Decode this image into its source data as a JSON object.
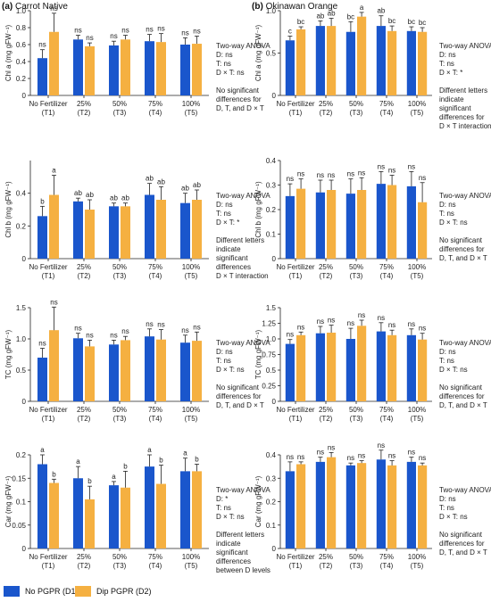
{
  "panels": [
    {
      "letter": "(a)",
      "name": "Carrot Native"
    },
    {
      "letter": "(b)",
      "name": "Okinawan Orange"
    }
  ],
  "legend": {
    "d1": {
      "label": "No PGPR (D1)",
      "color": "#1a56cc"
    },
    "d2": {
      "label": "Dip PGPR (D2)",
      "color": "#f5b041"
    }
  },
  "chart_data": [
    {
      "id": "a1",
      "panel": "(a) Carrot Native",
      "type": "bar",
      "ylabel": "Chl a (mg gFW⁻¹)",
      "ylim": [
        0,
        1.0
      ],
      "yticks": [
        0,
        0.2,
        0.4,
        0.6,
        0.8,
        1.0
      ],
      "categories": [
        "No Fertilizer (T1)",
        "25% (T2)",
        "50% (T3)",
        "75% (T4)",
        "100% (T5)"
      ],
      "cat_main": [
        "No Fertilizer",
        "25%",
        "50%",
        "75%",
        "100%"
      ],
      "cat_sub": [
        "(T1)",
        "(T2)",
        "(T3)",
        "(T4)",
        "(T5)"
      ],
      "series": [
        {
          "name": "No PGPR (D1)",
          "values": [
            0.44,
            0.66,
            0.59,
            0.64,
            0.6
          ],
          "errors": [
            0.1,
            0.05,
            0.05,
            0.08,
            0.08
          ],
          "labels": [
            "ns",
            "ns",
            "ns",
            "ns",
            "ns"
          ]
        },
        {
          "name": "Dip PGPR (D2)",
          "values": [
            0.75,
            0.58,
            0.66,
            0.63,
            0.61
          ],
          "errors": [
            0.22,
            0.04,
            0.05,
            0.1,
            0.09
          ],
          "labels": [
            "ns",
            "ns",
            "ns",
            "ns",
            "ns"
          ]
        }
      ],
      "annotation": [
        "Two-way ANOVA",
        "D: ns",
        "T: ns",
        "D × T: ns",
        "",
        "No significant",
        "differences for",
        "D, T, and D × T"
      ]
    },
    {
      "id": "a2",
      "panel": "(a) Carrot Native",
      "type": "bar",
      "ylabel": "Chl b (mg gFW⁻¹)",
      "ylim": [
        0,
        0.6
      ],
      "yticks": [
        0,
        0.2,
        0.4
      ],
      "categories": [
        "No Fertilizer (T1)",
        "25% (T2)",
        "50% (T3)",
        "75% (T4)",
        "100% (T5)"
      ],
      "cat_main": [
        "No Fertilizer",
        "25%",
        "50%",
        "75%",
        "100%"
      ],
      "cat_sub": [
        "(T1)",
        "(T2)",
        "(T3)",
        "(T4)",
        "(T5)"
      ],
      "series": [
        {
          "name": "No PGPR (D1)",
          "values": [
            0.26,
            0.35,
            0.32,
            0.39,
            0.34
          ],
          "errors": [
            0.06,
            0.02,
            0.02,
            0.07,
            0.06
          ],
          "labels": [
            "b",
            "ab",
            "ab",
            "ab",
            "ab"
          ]
        },
        {
          "name": "Dip PGPR (D2)",
          "values": [
            0.39,
            0.3,
            0.32,
            0.36,
            0.36
          ],
          "errors": [
            0.12,
            0.06,
            0.02,
            0.08,
            0.06
          ],
          "labels": [
            "a",
            "ab",
            "ab",
            "ab",
            "ab"
          ]
        }
      ],
      "annotation": [
        "Two-way ANOVA",
        "D: ns",
        "T: ns",
        "D × T: *",
        "",
        "Different letters",
        "indicate",
        "significant",
        "differences",
        "D × T interaction"
      ]
    },
    {
      "id": "a3",
      "panel": "(a) Carrot Native",
      "type": "bar",
      "ylabel": "TC (mg gFW⁻¹)",
      "ylim": [
        0,
        1.5
      ],
      "yticks": [
        0,
        0.5,
        1.0,
        1.5
      ],
      "categories": [
        "No Fertilizer (T1)",
        "25% (T2)",
        "50% (T3)",
        "75% (T4)",
        "100% (T5)"
      ],
      "cat_main": [
        "No Fertilizer",
        "25%",
        "50%",
        "75%",
        "100%"
      ],
      "cat_sub": [
        "(T1)",
        "(T2)",
        "(T3)",
        "(T4)",
        "(T5)"
      ],
      "series": [
        {
          "name": "No PGPR (D1)",
          "values": [
            0.7,
            1.01,
            0.91,
            1.04,
            0.94
          ],
          "errors": [
            0.15,
            0.08,
            0.07,
            0.12,
            0.12
          ],
          "labels": [
            "ns",
            "ns",
            "ns",
            "ns",
            "ns"
          ]
        },
        {
          "name": "Dip PGPR (D2)",
          "values": [
            1.14,
            0.88,
            0.98,
            0.99,
            0.97
          ],
          "errors": [
            0.37,
            0.1,
            0.06,
            0.16,
            0.14
          ],
          "labels": [
            "ns",
            "ns",
            "ns",
            "ns",
            "ns"
          ]
        }
      ],
      "annotation": [
        "Two-way ANOVA",
        "D: ns",
        "T: ns",
        "D × T: ns",
        "",
        "No significant",
        "differences for",
        "D, T, and D × T"
      ]
    },
    {
      "id": "a4",
      "panel": "(a) Carrot Native",
      "type": "bar",
      "ylabel": "Car (mg gFW⁻¹)",
      "ylim": [
        0,
        0.2
      ],
      "yticks": [
        0,
        0.05,
        0.1,
        0.15,
        0.2
      ],
      "categories": [
        "No Fertilizer (T1)",
        "25% (T2)",
        "50% (T3)",
        "75% (T4)",
        "100% (T5)"
      ],
      "cat_main": [
        "No Fertilizer",
        "25%",
        "50%",
        "75%",
        "100%"
      ],
      "cat_sub": [
        "(T1)",
        "(T2)",
        "(T3)",
        "(T4)",
        "(T5)"
      ],
      "series": [
        {
          "name": "No PGPR (D1)",
          "values": [
            0.18,
            0.15,
            0.135,
            0.175,
            0.165
          ],
          "errors": [
            0.02,
            0.025,
            0.008,
            0.025,
            0.028
          ],
          "labels": [
            "a",
            "a",
            "a",
            "a",
            "a"
          ]
        },
        {
          "name": "Dip PGPR (D2)",
          "values": [
            0.14,
            0.105,
            0.13,
            0.138,
            0.165
          ],
          "errors": [
            0.008,
            0.028,
            0.035,
            0.04,
            0.015
          ],
          "labels": [
            "b",
            "b",
            "b",
            "b",
            "b"
          ]
        }
      ],
      "annotation": [
        "Two-way ANOVA",
        "D: *",
        "T: ns",
        "D × T: ns",
        "",
        "Different letters",
        "indicate",
        "significant",
        "differences",
        "between D levels"
      ]
    },
    {
      "id": "b1",
      "panel": "(b) Okinawan Orange",
      "type": "bar",
      "ylabel": "Chl a (mg gFW⁻¹)",
      "ylim": [
        0,
        1.0
      ],
      "yticks": [
        0,
        0.5,
        1.0
      ],
      "categories": [
        "No Fertilizer (T1)",
        "25% (T2)",
        "50% (T3)",
        "75% (T4)",
        "100% (T5)"
      ],
      "cat_main": [
        "No Fertilizer",
        "25%",
        "50%",
        "75%",
        "100%"
      ],
      "cat_sub": [
        "(T1)",
        "(T2)",
        "(T3)",
        "(T4)",
        "(T5)"
      ],
      "series": [
        {
          "name": "No PGPR (D1)",
          "values": [
            0.65,
            0.82,
            0.75,
            0.82,
            0.76
          ],
          "errors": [
            0.05,
            0.06,
            0.12,
            0.12,
            0.05
          ],
          "labels": [
            "c",
            "ab",
            "bc",
            "ab",
            "bc"
          ]
        },
        {
          "name": "Dip PGPR (D2)",
          "values": [
            0.78,
            0.82,
            0.93,
            0.76,
            0.75
          ],
          "errors": [
            0.03,
            0.09,
            0.05,
            0.06,
            0.05
          ],
          "labels": [
            "bc",
            "ab",
            "a",
            "bc",
            "bc"
          ]
        }
      ],
      "annotation": [
        "Two-way ANOVA",
        "D: ns",
        "T: ns",
        "D × T: *",
        "",
        "Different letters",
        "indicate",
        "significant",
        "differences for",
        "D × T interaction"
      ]
    },
    {
      "id": "b2",
      "panel": "(b) Okinawan Orange",
      "type": "bar",
      "ylabel": "Chl b (mg gFW⁻¹)",
      "ylim": [
        0,
        0.4
      ],
      "yticks": [
        0,
        0.1,
        0.2,
        0.3,
        0.4
      ],
      "categories": [
        "No Fertilizer (T1)",
        "25% (T2)",
        "50% (T3)",
        "75% (T4)",
        "100% (T5)"
      ],
      "cat_main": [
        "No Fertilizer",
        "25%",
        "50%",
        "75%",
        "100%"
      ],
      "cat_sub": [
        "(T1)",
        "(T2)",
        "(T3)",
        "(T4)",
        "(T5)"
      ],
      "series": [
        {
          "name": "No PGPR (D1)",
          "values": [
            0.255,
            0.27,
            0.265,
            0.305,
            0.295
          ],
          "errors": [
            0.05,
            0.05,
            0.06,
            0.05,
            0.06
          ],
          "labels": [
            "ns",
            "ns",
            "ns",
            "ns",
            "ns"
          ]
        },
        {
          "name": "Dip PGPR (D2)",
          "values": [
            0.285,
            0.28,
            0.28,
            0.3,
            0.23
          ],
          "errors": [
            0.04,
            0.04,
            0.05,
            0.04,
            0.08
          ],
          "labels": [
            "ns",
            "ns",
            "ns",
            "ns",
            "ns"
          ]
        }
      ],
      "annotation": [
        "Two-way ANOVA",
        "D: ns",
        "T: ns",
        "D × T: ns",
        "",
        "No significant",
        "differences for",
        "D, T, and D × T"
      ]
    },
    {
      "id": "b3",
      "panel": "(b) Okinawan Orange",
      "type": "bar",
      "ylabel": "TC (mg gFW⁻¹)",
      "ylim": [
        0,
        1.5
      ],
      "yticks": [
        0,
        0.25,
        0.5,
        0.75,
        1.0,
        1.25,
        1.5
      ],
      "categories": [
        "No Fertilizer (T1)",
        "25% (T2)",
        "50% (T3)",
        "75% (T4)",
        "100% (T5)"
      ],
      "cat_main": [
        "No Fertilizer",
        "25%",
        "50%",
        "75%",
        "100%"
      ],
      "cat_sub": [
        "(T1)",
        "(T2)",
        "(T3)",
        "(T4)",
        "(T5)"
      ],
      "series": [
        {
          "name": "No PGPR (D1)",
          "values": [
            0.92,
            1.09,
            1.0,
            1.12,
            1.06
          ],
          "errors": [
            0.07,
            0.11,
            0.17,
            0.14,
            0.1
          ],
          "labels": [
            "ns",
            "ns",
            "ns",
            "ns",
            "ns"
          ]
        },
        {
          "name": "Dip PGPR (D2)",
          "values": [
            1.06,
            1.1,
            1.21,
            1.06,
            0.99
          ],
          "errors": [
            0.05,
            0.12,
            0.09,
            0.08,
            0.1
          ],
          "labels": [
            "ns",
            "ns",
            "ns",
            "ns",
            "ns"
          ]
        }
      ],
      "annotation": [
        "Two-way ANOVA",
        "D: ns",
        "T: ns",
        "D × T: ns",
        "",
        "No significant",
        "differences for",
        "D, T, and D × T"
      ]
    },
    {
      "id": "b4",
      "panel": "(b) Okinawan Orange",
      "type": "bar",
      "ylabel": "Car (mg gFW⁻¹)",
      "ylim": [
        0,
        0.4
      ],
      "yticks": [
        0,
        0.1,
        0.2,
        0.3,
        0.4
      ],
      "categories": [
        "No Fertilizer (T1)",
        "25% (T2)",
        "50% (T3)",
        "75% (T4)",
        "100% (T5)"
      ],
      "cat_main": [
        "No Fertilizer",
        "25%",
        "50%",
        "75%",
        "100%"
      ],
      "cat_sub": [
        "(T1)",
        "(T2)",
        "(T3)",
        "(T4)",
        "(T5)"
      ],
      "series": [
        {
          "name": "No PGPR (D1)",
          "values": [
            0.33,
            0.37,
            0.355,
            0.38,
            0.37
          ],
          "errors": [
            0.04,
            0.02,
            0.01,
            0.04,
            0.02
          ],
          "labels": [
            "ns",
            "ns",
            "ns",
            "ns",
            "ns"
          ]
        },
        {
          "name": "Dip PGPR (D2)",
          "values": [
            0.36,
            0.39,
            0.365,
            0.355,
            0.355
          ],
          "errors": [
            0.01,
            0.02,
            0.01,
            0.02,
            0.01
          ],
          "labels": [
            "ns",
            "ns",
            "ns",
            "ns",
            "ns"
          ]
        }
      ],
      "annotation": [
        "Two-way ANOVA",
        "D: ns",
        "T: ns",
        "D × T: ns",
        "",
        "No significant",
        "differences for",
        "D, T, and D × T"
      ]
    }
  ]
}
